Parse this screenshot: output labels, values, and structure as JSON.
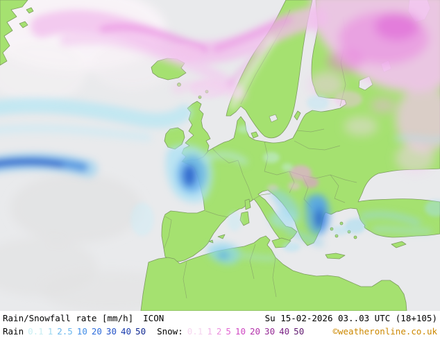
{
  "map": {
    "description": "Europe precipitation forecast map",
    "colors": {
      "sea": "#e9eaec",
      "land": "#a5e170",
      "coast": "#7d9c5f",
      "border": "#8aa868",
      "copyright": "#cc8800"
    }
  },
  "legend": {
    "title": "Rain/Snowfall rate [mm/h]",
    "model": "ICON",
    "datetime": "Su 15-02-2026 03..03 UTC (18+105)",
    "rain_label": "Rain",
    "rain_values": [
      {
        "value": "0.1",
        "color": "#c9eef2"
      },
      {
        "value": "1",
        "color": "#9fd9f0"
      },
      {
        "value": "2.5",
        "color": "#6cb8ee"
      },
      {
        "value": "10",
        "color": "#418ee8"
      },
      {
        "value": "20",
        "color": "#2f6edd"
      },
      {
        "value": "30",
        "color": "#2453c8"
      },
      {
        "value": "40",
        "color": "#1a3cae"
      },
      {
        "value": "50",
        "color": "#122a92"
      }
    ],
    "snow_label": "Snow:",
    "snow_values": [
      {
        "value": "0.1",
        "color": "#f6d7f0"
      },
      {
        "value": "1",
        "color": "#f2b3e8"
      },
      {
        "value": "2",
        "color": "#ec8ede"
      },
      {
        "value": "5",
        "color": "#e266d2"
      },
      {
        "value": "10",
        "color": "#cf46c2"
      },
      {
        "value": "20",
        "color": "#b332ab"
      },
      {
        "value": "30",
        "color": "#962b96"
      },
      {
        "value": "40",
        "color": "#7a2384"
      },
      {
        "value": "50",
        "color": "#611b70"
      }
    ],
    "copyright": "©weatheronline.co.uk"
  }
}
